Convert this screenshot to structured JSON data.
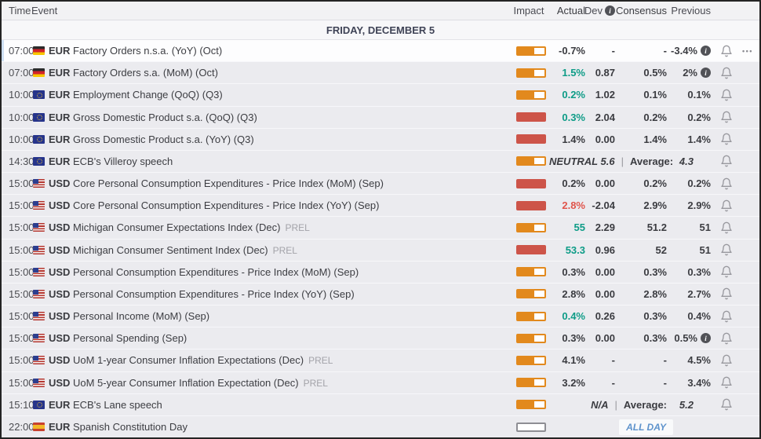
{
  "colors": {
    "impact_medium": "#e2891d",
    "impact_high": "#cd5449",
    "impact_none": "#8e8e94",
    "positive_value": "#0e9c87",
    "negative_value": "#e0544b",
    "neutral_value": "#3a3b40",
    "all_day_text": "#5e93cc"
  },
  "table": {
    "columns": {
      "time": "Time",
      "event": "Event",
      "impact": "Impact",
      "actual": "Actual",
      "dev": "Dev",
      "consensus": "Consensus",
      "previous": "Previous"
    },
    "day_header": "FRIDAY, DECEMBER 5",
    "icons": {
      "info": "i",
      "more": "•••",
      "bell": "bell-outline"
    },
    "rows": [
      {
        "type": "data",
        "time": "07:00",
        "flag": "germany",
        "currency": "EUR",
        "event": "Factory Orders n.s.a. (YoY) (Oct)",
        "prel": "",
        "impact": "medium",
        "actual": "-0.7%",
        "actual_tone": "neutral",
        "dev": "-",
        "consensus": "-",
        "previous": "-3.4%",
        "previous_info": true,
        "bell": true,
        "more": true,
        "highlight": true
      },
      {
        "type": "data",
        "time": "07:00",
        "flag": "germany",
        "currency": "EUR",
        "event": "Factory Orders s.a. (MoM) (Oct)",
        "prel": "",
        "impact": "medium",
        "actual": "1.5%",
        "actual_tone": "positive",
        "dev": "0.87",
        "consensus": "0.5%",
        "previous": "2%",
        "previous_info": true,
        "bell": true,
        "more": false,
        "highlight": false
      },
      {
        "type": "data",
        "time": "10:00",
        "flag": "eu",
        "currency": "EUR",
        "event": "Employment Change (QoQ) (Q3)",
        "prel": "",
        "impact": "medium",
        "actual": "0.2%",
        "actual_tone": "positive",
        "dev": "1.02",
        "consensus": "0.1%",
        "previous": "0.1%",
        "previous_info": false,
        "bell": true,
        "more": false,
        "highlight": false
      },
      {
        "type": "data",
        "time": "10:00",
        "flag": "eu",
        "currency": "EUR",
        "event": "Gross Domestic Product s.a. (QoQ) (Q3)",
        "prel": "",
        "impact": "high",
        "actual": "0.3%",
        "actual_tone": "positive",
        "dev": "2.04",
        "consensus": "0.2%",
        "previous": "0.2%",
        "previous_info": false,
        "bell": true,
        "more": false,
        "highlight": false
      },
      {
        "type": "data",
        "time": "10:00",
        "flag": "eu",
        "currency": "EUR",
        "event": "Gross Domestic Product s.a. (YoY) (Q3)",
        "prel": "",
        "impact": "high",
        "actual": "1.4%",
        "actual_tone": "neutral",
        "dev": "0.00",
        "consensus": "1.4%",
        "previous": "1.4%",
        "previous_info": false,
        "bell": true,
        "more": false,
        "highlight": false
      },
      {
        "type": "speech",
        "time": "14:30",
        "flag": "eu",
        "currency": "EUR",
        "event": "ECB's Villeroy speech",
        "prel": "",
        "impact": "medium",
        "verdict": "NEUTRAL 5.6",
        "separator": "|",
        "average_label": "Average:",
        "average_value": "4.3",
        "bell": true,
        "highlight": false
      },
      {
        "type": "data",
        "time": "15:00",
        "flag": "us",
        "currency": "USD",
        "event": "Core Personal Consumption Expenditures - Price Index (MoM) (Sep)",
        "prel": "",
        "impact": "high",
        "actual": "0.2%",
        "actual_tone": "neutral",
        "dev": "0.00",
        "consensus": "0.2%",
        "previous": "0.2%",
        "previous_info": false,
        "bell": true,
        "more": false,
        "highlight": false
      },
      {
        "type": "data",
        "time": "15:00",
        "flag": "us",
        "currency": "USD",
        "event": "Core Personal Consumption Expenditures - Price Index (YoY) (Sep)",
        "prel": "",
        "impact": "high",
        "actual": "2.8%",
        "actual_tone": "negative",
        "dev": "-2.04",
        "consensus": "2.9%",
        "previous": "2.9%",
        "previous_info": false,
        "bell": true,
        "more": false,
        "highlight": false
      },
      {
        "type": "data",
        "time": "15:00",
        "flag": "us",
        "currency": "USD",
        "event": "Michigan Consumer Expectations Index (Dec)",
        "prel": "PREL",
        "impact": "medium",
        "actual": "55",
        "actual_tone": "positive",
        "dev": "2.29",
        "consensus": "51.2",
        "previous": "51",
        "previous_info": false,
        "bell": true,
        "more": false,
        "highlight": false
      },
      {
        "type": "data",
        "time": "15:00",
        "flag": "us",
        "currency": "USD",
        "event": "Michigan Consumer Sentiment Index (Dec)",
        "prel": "PREL",
        "impact": "high",
        "actual": "53.3",
        "actual_tone": "positive",
        "dev": "0.96",
        "consensus": "52",
        "previous": "51",
        "previous_info": false,
        "bell": true,
        "more": false,
        "highlight": false
      },
      {
        "type": "data",
        "time": "15:00",
        "flag": "us",
        "currency": "USD",
        "event": "Personal Consumption Expenditures - Price Index (MoM) (Sep)",
        "prel": "",
        "impact": "medium",
        "actual": "0.3%",
        "actual_tone": "neutral",
        "dev": "0.00",
        "consensus": "0.3%",
        "previous": "0.3%",
        "previous_info": false,
        "bell": true,
        "more": false,
        "highlight": false
      },
      {
        "type": "data",
        "time": "15:00",
        "flag": "us",
        "currency": "USD",
        "event": "Personal Consumption Expenditures - Price Index (YoY) (Sep)",
        "prel": "",
        "impact": "medium",
        "actual": "2.8%",
        "actual_tone": "neutral",
        "dev": "0.00",
        "consensus": "2.8%",
        "previous": "2.7%",
        "previous_info": false,
        "bell": true,
        "more": false,
        "highlight": false
      },
      {
        "type": "data",
        "time": "15:00",
        "flag": "us",
        "currency": "USD",
        "event": "Personal Income (MoM) (Sep)",
        "prel": "",
        "impact": "medium",
        "actual": "0.4%",
        "actual_tone": "positive",
        "dev": "0.26",
        "consensus": "0.3%",
        "previous": "0.4%",
        "previous_info": false,
        "bell": true,
        "more": false,
        "highlight": false
      },
      {
        "type": "data",
        "time": "15:00",
        "flag": "us",
        "currency": "USD",
        "event": "Personal Spending (Sep)",
        "prel": "",
        "impact": "medium",
        "actual": "0.3%",
        "actual_tone": "neutral",
        "dev": "0.00",
        "consensus": "0.3%",
        "previous": "0.5%",
        "previous_info": true,
        "bell": true,
        "more": false,
        "highlight": false
      },
      {
        "type": "data",
        "time": "15:00",
        "flag": "us",
        "currency": "USD",
        "event": "UoM 1-year Consumer Inflation Expectations (Dec)",
        "prel": "PREL",
        "impact": "medium",
        "actual": "4.1%",
        "actual_tone": "neutral",
        "dev": "-",
        "consensus": "-",
        "previous": "4.5%",
        "previous_info": false,
        "bell": true,
        "more": false,
        "highlight": false
      },
      {
        "type": "data",
        "time": "15:00",
        "flag": "us",
        "currency": "USD",
        "event": "UoM 5-year Consumer Inflation Expectation (Dec)",
        "prel": "PREL",
        "impact": "medium",
        "actual": "3.2%",
        "actual_tone": "neutral",
        "dev": "-",
        "consensus": "-",
        "previous": "3.4%",
        "previous_info": false,
        "bell": true,
        "more": false,
        "highlight": false
      },
      {
        "type": "speech",
        "time": "15:10",
        "flag": "eu",
        "currency": "EUR",
        "event": "ECB's Lane speech",
        "prel": "",
        "impact": "medium",
        "verdict": "N/A",
        "separator": "|",
        "average_label": "Average:",
        "average_value": "5.2",
        "bell": true,
        "highlight": false
      },
      {
        "type": "holiday",
        "time": "22:00",
        "flag": "spain",
        "currency": "EUR",
        "event": "Spanish Constitution Day",
        "prel": "",
        "impact": "none",
        "badge": "ALL DAY",
        "bell": false,
        "highlight": false
      }
    ]
  }
}
